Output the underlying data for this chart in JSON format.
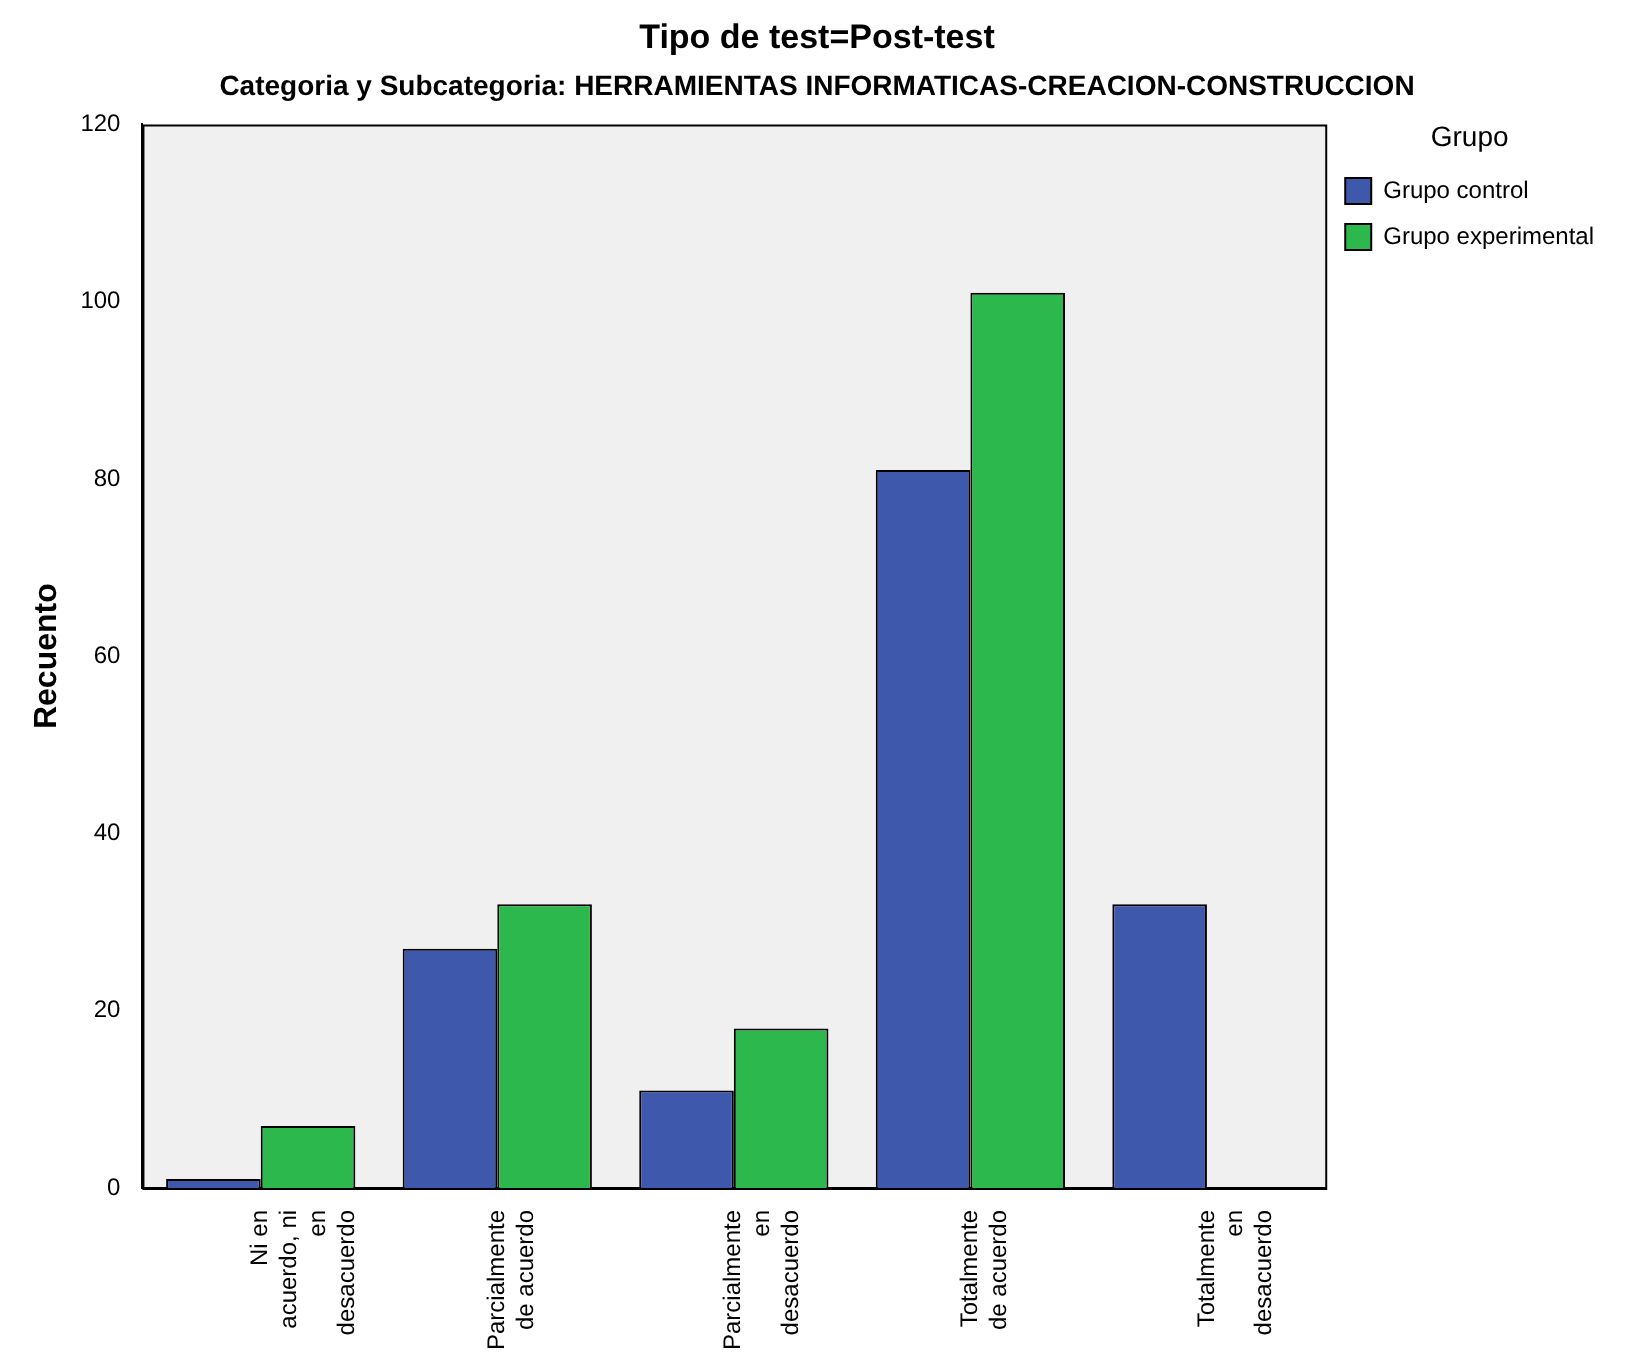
{
  "chart_data": {
    "type": "bar",
    "title": "Tipo de test=Post-test",
    "subtitle": "Categoria y Subcategoria: HERRAMIENTAS INFORMATICAS-CREACION-CONSTRUCCION",
    "ylabel": "Recuento",
    "legend_title": "Grupo",
    "legend": "top right",
    "grid": false,
    "categories": [
      "Ni en acuerdo, ni en desacuerdo",
      "Parcialmente de acuerdo",
      "Parcialmente en desacuerdo",
      "Totalmente de acuerdo",
      "Totalmente en desacuerdo"
    ],
    "series": [
      {
        "name": "Grupo control",
        "color": "#3e58ac",
        "values": [
          1,
          27,
          11,
          81,
          32
        ]
      },
      {
        "name": "Grupo experimental",
        "color": "#2db84d",
        "values": [
          7,
          32,
          18,
          101,
          null
        ]
      }
    ],
    "ylim": [
      0,
      120
    ],
    "yticks": [
      0,
      20,
      40,
      60,
      80,
      100,
      120
    ]
  }
}
